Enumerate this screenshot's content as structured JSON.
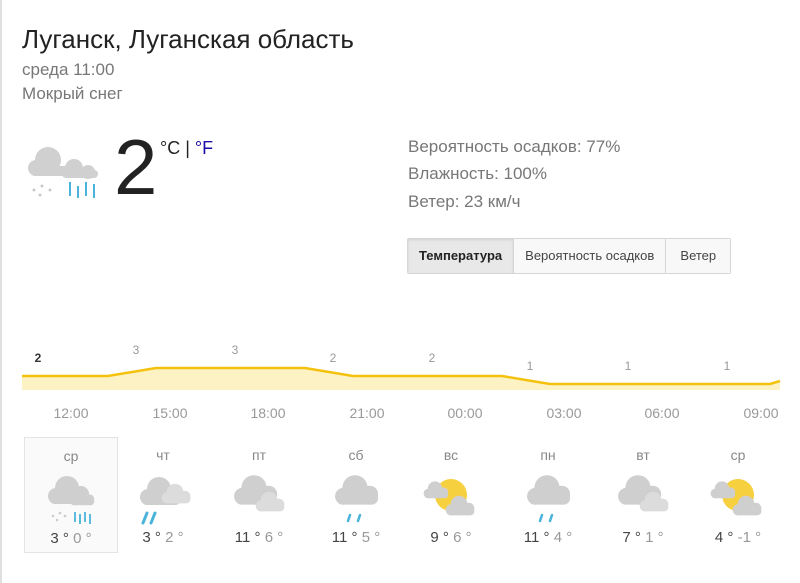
{
  "location": "Луганск, Луганская область",
  "time": "среда 11:00",
  "condition": "Мокрый снег",
  "current": {
    "temp": "2",
    "unit_c": "°C",
    "sep": " | ",
    "unit_f": "°F",
    "icon": "sleet-icon"
  },
  "details": {
    "precip": "Вероятность осадков: 77%",
    "humidity": "Влажность: 100%",
    "wind": "Ветер: 23 км/ч"
  },
  "tabs": [
    "Температура",
    "Вероятность осадков",
    "Ветер"
  ],
  "active_tab": 0,
  "colors": {
    "line": "#f4c20d",
    "fill": "#fdf2c4",
    "rain": "#4ab3d9",
    "sun": "#f6d03f",
    "cloud": "#cfcfcf"
  },
  "chart_data": {
    "type": "area",
    "x": [
      "12:00",
      "15:00",
      "18:00",
      "21:00",
      "00:00",
      "03:00",
      "06:00",
      "09:00"
    ],
    "values": [
      2,
      3,
      3,
      2,
      2,
      1,
      1,
      1
    ],
    "labels": [
      "2",
      "3",
      "3",
      "2",
      "2",
      "1",
      "1",
      "1"
    ]
  },
  "forecast": [
    {
      "day": "ср",
      "hi": "3 °",
      "lo": "0 °",
      "icon": "sleet"
    },
    {
      "day": "чт",
      "hi": "3 °",
      "lo": "2 °",
      "icon": "rain-cloudy"
    },
    {
      "day": "пт",
      "hi": "11 °",
      "lo": "6 °",
      "icon": "cloudy"
    },
    {
      "day": "сб",
      "hi": "11 °",
      "lo": "5 °",
      "icon": "rain"
    },
    {
      "day": "вс",
      "hi": "9 °",
      "lo": "6 °",
      "icon": "partly-cloudy"
    },
    {
      "day": "пн",
      "hi": "11 °",
      "lo": "4 °",
      "icon": "rain"
    },
    {
      "day": "вт",
      "hi": "7 °",
      "lo": "1 °",
      "icon": "cloudy"
    },
    {
      "day": "ср",
      "hi": "4 °",
      "lo": "-1 °",
      "icon": "partly-cloudy"
    }
  ]
}
